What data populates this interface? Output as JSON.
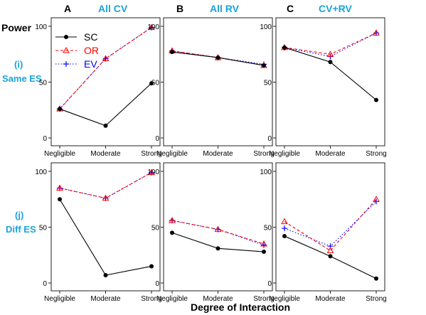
{
  "figure": {
    "row_title": "Power",
    "xlabel": "Degree of Interaction",
    "columns": [
      {
        "letter": "A",
        "title": "All CV"
      },
      {
        "letter": "B",
        "title": "All RV"
      },
      {
        "letter": "C",
        "title": "CV+RV"
      }
    ],
    "rows": [
      {
        "label": "(i)",
        "sublabel": "Same ES"
      },
      {
        "label": "(j)",
        "sublabel": "Diff ES"
      }
    ],
    "legend": [
      {
        "name": "SC",
        "color": "#000000"
      },
      {
        "name": "OR",
        "color": "#ff0000"
      },
      {
        "name": "EV",
        "color": "#0000ff"
      }
    ],
    "colors": {
      "SC": "#000000",
      "OR": "#ff0000",
      "EV": "#0000ff",
      "panel_title": "#1aa3dc"
    }
  },
  "chart_data": [
    {
      "type": "line",
      "panel": "A-i",
      "categories": [
        "Negligible",
        "Moderate",
        "Strong"
      ],
      "ylim": [
        0,
        100
      ],
      "yticks": [
        0,
        50,
        100
      ],
      "series": [
        {
          "name": "SC",
          "values": [
            26,
            11,
            49
          ]
        },
        {
          "name": "OR",
          "values": [
            26,
            71,
            99
          ]
        },
        {
          "name": "EV",
          "values": [
            26,
            71,
            99
          ]
        }
      ]
    },
    {
      "type": "line",
      "panel": "B-i",
      "categories": [
        "Negligible",
        "Moderate",
        "Strong"
      ],
      "ylim": [
        0,
        100
      ],
      "yticks": [
        0,
        50,
        100
      ],
      "series": [
        {
          "name": "SC",
          "values": [
            77,
            72,
            65
          ]
        },
        {
          "name": "OR",
          "values": [
            78,
            72,
            65
          ]
        },
        {
          "name": "EV",
          "values": [
            78,
            72,
            66
          ]
        }
      ]
    },
    {
      "type": "line",
      "panel": "C-i",
      "categories": [
        "Negligible",
        "Moderate",
        "Strong"
      ],
      "ylim": [
        0,
        100
      ],
      "yticks": [
        0,
        50,
        100
      ],
      "series": [
        {
          "name": "SC",
          "values": [
            81,
            68,
            34
          ]
        },
        {
          "name": "OR",
          "values": [
            81,
            75,
            94
          ]
        },
        {
          "name": "EV",
          "values": [
            81,
            73,
            94
          ]
        }
      ]
    },
    {
      "type": "line",
      "panel": "A-j",
      "categories": [
        "Negligible",
        "Moderate",
        "Strong"
      ],
      "ylim": [
        0,
        100
      ],
      "yticks": [
        0,
        50,
        100
      ],
      "series": [
        {
          "name": "SC",
          "values": [
            75,
            7,
            15
          ]
        },
        {
          "name": "OR",
          "values": [
            85,
            76,
            99
          ]
        },
        {
          "name": "EV",
          "values": [
            85,
            76,
            99
          ]
        }
      ]
    },
    {
      "type": "line",
      "panel": "B-j",
      "categories": [
        "Negligible",
        "Moderate",
        "Strong"
      ],
      "ylim": [
        0,
        100
      ],
      "yticks": [
        0,
        50,
        100
      ],
      "series": [
        {
          "name": "SC",
          "values": [
            45,
            31,
            28
          ]
        },
        {
          "name": "OR",
          "values": [
            56,
            48,
            35
          ]
        },
        {
          "name": "EV",
          "values": [
            56,
            48,
            34
          ]
        }
      ]
    },
    {
      "type": "line",
      "panel": "C-j",
      "categories": [
        "Negligible",
        "Moderate",
        "Strong"
      ],
      "ylim": [
        0,
        100
      ],
      "yticks": [
        0,
        50,
        100
      ],
      "series": [
        {
          "name": "SC",
          "values": [
            42,
            24,
            4
          ]
        },
        {
          "name": "OR",
          "values": [
            55,
            29,
            75
          ]
        },
        {
          "name": "EV",
          "values": [
            49,
            33,
            73
          ]
        }
      ]
    }
  ]
}
